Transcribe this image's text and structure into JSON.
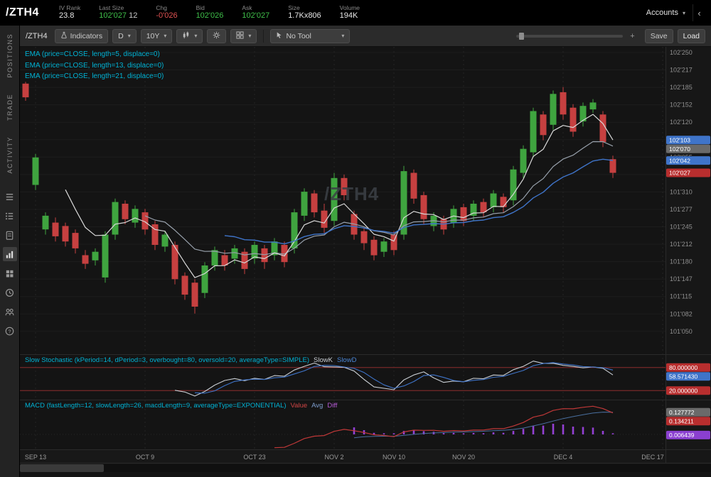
{
  "colors": {
    "up": "#3fa43f",
    "down": "#c64040",
    "ema5": "#d9d9d9",
    "ema13": "#97a0ab",
    "ema21": "#3f74c9",
    "slowk": "#c9ced4",
    "slowd": "#3f74c9",
    "ob_os": "#a03030",
    "macd_value": "#c03838",
    "macd_avg": "#4a6f9f",
    "macd_diff": "#9440d4",
    "accent_cyan": "#00b2d4",
    "bubble_blue": "#3f74c9",
    "bubble_gray": "#6a6a6a",
    "bubble_red": "#b82e2e",
    "bubble_purple": "#8a3fd0"
  },
  "header": {
    "symbol": "/ZTH4",
    "fields": [
      {
        "label": "IV Rank",
        "value": "23.8"
      },
      {
        "label": "Last Size",
        "value": "102'027",
        "extra": "12"
      },
      {
        "label": "Chg",
        "value": "-0'026"
      },
      {
        "label": "Bid",
        "value": "102'026"
      },
      {
        "label": "Ask",
        "value": "102'027"
      },
      {
        "label": "Size",
        "value": "1.7Kx806"
      },
      {
        "label": "Volume",
        "value": "194K"
      }
    ],
    "accounts_label": "Accounts"
  },
  "sidebar": {
    "tabs": [
      {
        "label": "POSITIONS"
      },
      {
        "label": "TRADE"
      },
      {
        "label": "ACTIVITY"
      }
    ],
    "icons": [
      "watchlist-icon",
      "orders-icon",
      "notes-icon",
      "chart-icon",
      "widgets-icon",
      "history-icon",
      "share-users-icon",
      "help-icon"
    ],
    "active_icon": "chart-icon"
  },
  "toolbar": {
    "symbol": "/ZTH4",
    "indicators_label": "Indicators",
    "timeframe_value": "D",
    "range_value": "10Y",
    "tool_value": "No Tool",
    "save_label": "Save",
    "load_label": "Load"
  },
  "studies": {
    "ema5": "EMA (price=CLOSE, length=5, displace=0)",
    "ema13": "EMA (price=CLOSE, length=13, displace=0)",
    "ema21": "EMA (price=CLOSE, length=21, displace=0)",
    "stoch_label": "Slow Stochastic (kPeriod=14, dPeriod=3, overbought=80, oversold=20, averageType=SIMPLE)",
    "stoch_k": "SlowK",
    "stoch_d": "SlowD",
    "macd_label": "MACD (fastLength=12, slowLength=26, macdLength=9, averageType=EXPONENTIAL)",
    "macd_value": "Value",
    "macd_avg": "Avg",
    "macd_diff": "Diff"
  },
  "chart_data": {
    "type": "candlestick",
    "symbol": "/ZTH4",
    "watermark": "/ZTH4",
    "timeframe": "D",
    "range": "10Y",
    "price_axis": {
      "labels": [
        "102'250",
        "102'217",
        "102'185",
        "102'152",
        "102'120",
        "102'087",
        "102'055",
        "102'022",
        "101'310",
        "101'277",
        "101'245",
        "101'212",
        "101'180",
        "101'147",
        "101'115",
        "101'082",
        "101'050"
      ],
      "top_value": 102.78125,
      "step_value": 0.1015625
    },
    "x_ticks": [
      {
        "label": "SEP 13",
        "i": 1
      },
      {
        "label": "OCT 9",
        "i": 12
      },
      {
        "label": "OCT 23",
        "i": 23
      },
      {
        "label": "NOV 2",
        "i": 31
      },
      {
        "label": "NOV 10",
        "i": 37
      },
      {
        "label": "NOV 20",
        "i": 44
      },
      {
        "label": "DEC 4",
        "i": 54
      },
      {
        "label": "DEC 17",
        "i": 64
      }
    ],
    "candles": [
      [
        102.6,
        102.61,
        102.5,
        102.52
      ],
      [
        102.01,
        102.19,
        101.98,
        102.17
      ],
      [
        101.75,
        101.85,
        101.72,
        101.83
      ],
      [
        101.79,
        101.82,
        101.68,
        101.71
      ],
      [
        101.77,
        101.79,
        101.65,
        101.68
      ],
      [
        101.73,
        101.75,
        101.61,
        101.64
      ],
      [
        101.6,
        101.63,
        101.52,
        101.55
      ],
      [
        101.57,
        101.64,
        101.54,
        101.62
      ],
      [
        101.47,
        101.74,
        101.44,
        101.72
      ],
      [
        101.72,
        101.93,
        101.69,
        101.91
      ],
      [
        101.9,
        101.92,
        101.78,
        101.81
      ],
      [
        101.79,
        101.89,
        101.76,
        101.87
      ],
      [
        101.85,
        101.87,
        101.72,
        101.75
      ],
      [
        101.78,
        101.8,
        101.63,
        101.66
      ],
      [
        101.65,
        101.74,
        101.62,
        101.72
      ],
      [
        101.66,
        101.68,
        101.43,
        101.46
      ],
      [
        101.48,
        101.5,
        101.34,
        101.37
      ],
      [
        101.44,
        101.46,
        101.26,
        101.3
      ],
      [
        101.38,
        101.56,
        101.35,
        101.54
      ],
      [
        101.54,
        101.65,
        101.51,
        101.63
      ],
      [
        101.6,
        101.63,
        101.51,
        101.54
      ],
      [
        101.58,
        101.66,
        101.55,
        101.64
      ],
      [
        101.62,
        101.64,
        101.49,
        101.52
      ],
      [
        101.58,
        101.68,
        101.55,
        101.66
      ],
      [
        101.64,
        101.66,
        101.52,
        101.56
      ],
      [
        101.6,
        101.7,
        101.57,
        101.68
      ],
      [
        101.66,
        101.68,
        101.53,
        101.56
      ],
      [
        101.64,
        101.87,
        101.61,
        101.85
      ],
      [
        101.83,
        101.99,
        101.8,
        101.97
      ],
      [
        101.96,
        101.98,
        101.82,
        101.85
      ],
      [
        101.86,
        101.9,
        101.73,
        101.76
      ],
      [
        101.8,
        102.08,
        101.77,
        102.05
      ],
      [
        102.05,
        102.07,
        101.92,
        101.95
      ],
      [
        101.84,
        101.86,
        101.69,
        101.72
      ],
      [
        101.74,
        101.76,
        101.63,
        101.67
      ],
      [
        101.69,
        101.71,
        101.57,
        101.6
      ],
      [
        101.62,
        101.7,
        101.59,
        101.68
      ],
      [
        101.72,
        101.74,
        101.6,
        101.63
      ],
      [
        101.72,
        102.12,
        101.69,
        102.09
      ],
      [
        102.08,
        102.1,
        101.9,
        101.93
      ],
      [
        101.95,
        101.97,
        101.78,
        101.81
      ],
      [
        101.77,
        101.85,
        101.74,
        101.83
      ],
      [
        101.81,
        101.83,
        101.72,
        101.75
      ],
      [
        101.79,
        101.89,
        101.76,
        101.87
      ],
      [
        101.88,
        101.9,
        101.77,
        101.8
      ],
      [
        101.83,
        101.92,
        101.8,
        101.9
      ],
      [
        101.91,
        101.93,
        101.82,
        101.85
      ],
      [
        101.88,
        101.98,
        101.85,
        101.96
      ],
      [
        101.94,
        101.96,
        101.85,
        101.88
      ],
      [
        101.92,
        102.12,
        101.89,
        102.1
      ],
      [
        102.08,
        102.24,
        102.05,
        102.22
      ],
      [
        102.2,
        102.46,
        102.17,
        102.44
      ],
      [
        102.42,
        102.44,
        102.27,
        102.3
      ],
      [
        102.36,
        102.56,
        102.33,
        102.54
      ],
      [
        102.55,
        102.58,
        102.39,
        102.42
      ],
      [
        102.46,
        102.48,
        102.29,
        102.32
      ],
      [
        102.38,
        102.49,
        102.35,
        102.47
      ],
      [
        102.45,
        102.51,
        102.43,
        102.49
      ],
      [
        102.42,
        102.44,
        102.23,
        102.26
      ],
      [
        102.16,
        102.18,
        102.05,
        102.08
      ]
    ],
    "overlays": [
      {
        "name": "EMA",
        "length": 5
      },
      {
        "name": "EMA",
        "length": 13
      },
      {
        "name": "EMA",
        "length": 21
      }
    ],
    "price_bubbles": [
      {
        "text": "102'103",
        "bg": "#3f74c9"
      },
      {
        "text": "102'070",
        "bg": "#6a6a6a"
      },
      {
        "text": "102'042",
        "bg": "#3f74c9"
      },
      {
        "text": "102'027",
        "bg": "#b82e2e"
      }
    ],
    "stochastic": {
      "k_period": 14,
      "d_period": 3,
      "overbought": 80,
      "oversold": 20,
      "bubbles": [
        {
          "text": "80.000000",
          "bg": "#b82e2e"
        },
        {
          "text": "58.571430",
          "bg": "#3f74c9"
        },
        {
          "text": "20.000000",
          "bg": "#b82e2e"
        }
      ]
    },
    "macd": {
      "fast": 12,
      "slow": 26,
      "signal": 9,
      "bubbles": [
        {
          "text": "0.134211",
          "bg": "#b82e2e"
        },
        {
          "text": "0.127772",
          "bg": "#6a6a6a"
        },
        {
          "text": "0.006439",
          "bg": "#8a3fd0"
        }
      ]
    }
  }
}
